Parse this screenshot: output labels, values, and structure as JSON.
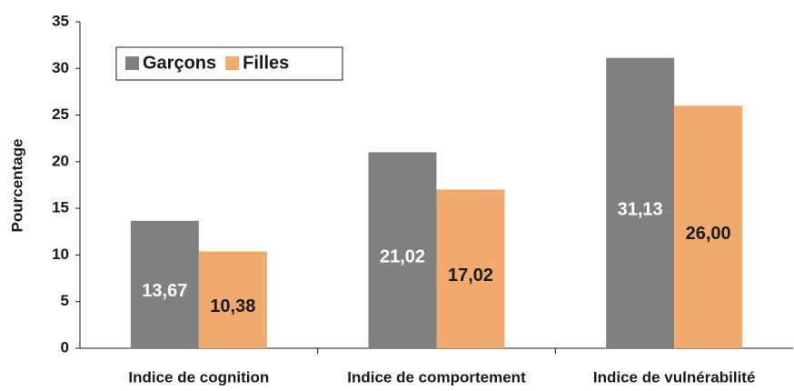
{
  "chart_data": {
    "type": "bar",
    "ylabel": "Pourcentage",
    "categories": [
      "Indice de cognition",
      "Indice de comportement",
      "Indice de vulnérabilité"
    ],
    "series": [
      {
        "name": "Garçons",
        "color": "#808080",
        "label_color": "#ffffff",
        "values": [
          13.67,
          21.02,
          31.13
        ],
        "value_labels": [
          "13,67",
          "21,02",
          "31,13"
        ]
      },
      {
        "name": "Filles",
        "color": "#f0aa6e",
        "label_color": "#1a1a1a",
        "values": [
          10.38,
          17.02,
          26.0
        ],
        "value_labels": [
          "10,38",
          "17,02",
          "26,00"
        ]
      }
    ],
    "ylim": [
      0,
      35
    ],
    "yticks": [
      0,
      5,
      10,
      15,
      20,
      25,
      30,
      35
    ],
    "grid": false,
    "legend": "upper left"
  }
}
